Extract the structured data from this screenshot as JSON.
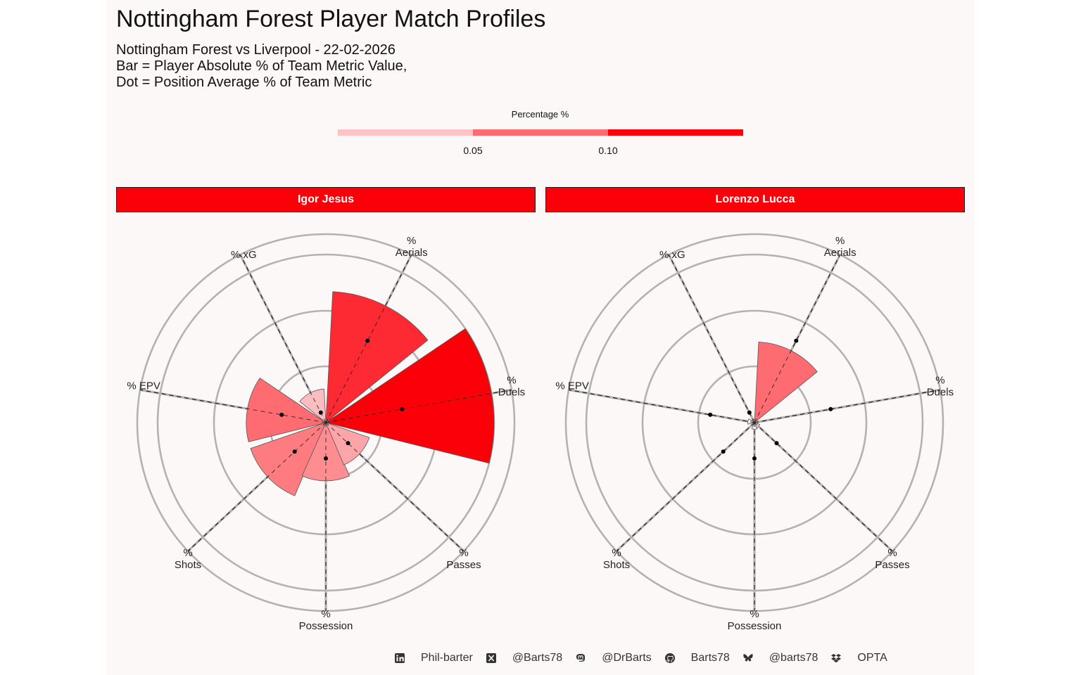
{
  "title": "Nottingham Forest Player Match Profiles",
  "subtitle_lines": [
    "Nottingham Forest vs Liverpool - 22-02-2026",
    "Bar = Player Absolute % of Team Metric Value,",
    "Dot = Position Average % of Team Metric"
  ],
  "footer": {
    "linkedin": "Phil-barter",
    "x": "@Barts78",
    "mastodon": "@DrBarts",
    "github": "Barts78",
    "bluesky": "@barts78",
    "source": "OPTA"
  },
  "colors": {
    "legend_low": "#fdc3c5",
    "legend_mid": "#fe6a6f",
    "legend_high": "#fc000a",
    "grid": "#b3b1b1",
    "bar_outline": "#555555"
  },
  "chart_data": {
    "type": "polar-bar",
    "legend": {
      "title": "Percentage %",
      "ticks": [
        "0.05",
        "0.10"
      ],
      "breaks": [
        0.05,
        0.1
      ],
      "placement": "top"
    },
    "axes": [
      {
        "top": "%",
        "bottom": "Duels",
        "angle_deg": 80
      },
      {
        "top": "%",
        "bottom": "Aerials",
        "angle_deg": 27
      },
      {
        "top": "",
        "bottom": "% xG",
        "angle_deg": -27
      },
      {
        "top": "",
        "bottom": "% EPV",
        "angle_deg": -80
      },
      {
        "top": "%",
        "bottom": "Shots",
        "angle_deg": -133
      },
      {
        "top": "%",
        "bottom": "Possession",
        "angle_deg": 180
      },
      {
        "top": "%",
        "bottom": "Passes",
        "angle_deg": 133
      }
    ],
    "ring_values": [
      0.05,
      0.1,
      0.15
    ],
    "facets": [
      {
        "player": "Igor Jesus",
        "metrics": [
          {
            "metric": "% Duels",
            "value": 0.15,
            "position_avg": 0.069,
            "color": "#fc000a"
          },
          {
            "metric": "% Aerials",
            "value": 0.117,
            "position_avg": 0.082,
            "color": "#fd2a33"
          },
          {
            "metric": "% xG",
            "value": 0.03,
            "position_avg": 0.01,
            "color": "#fdbdc0"
          },
          {
            "metric": "% EPV",
            "value": 0.071,
            "position_avg": 0.04,
            "color": "#fe6c71"
          },
          {
            "metric": "% Shots",
            "value": 0.071,
            "position_avg": 0.038,
            "color": "#fe7b80"
          },
          {
            "metric": "% Possession",
            "value": 0.052,
            "position_avg": 0.032,
            "color": "#fe8d91"
          },
          {
            "metric": "% Passes",
            "value": 0.041,
            "position_avg": 0.027,
            "color": "#fda5a8"
          }
        ]
      },
      {
        "player": "Lorenzo Lucca",
        "metrics": [
          {
            "metric": "% Duels",
            "value": 0.003,
            "position_avg": 0.069,
            "color": "#fde3e4"
          },
          {
            "metric": "% Aerials",
            "value": 0.072,
            "position_avg": 0.082,
            "color": "#fe6c71"
          },
          {
            "metric": "% xG",
            "value": 0.003,
            "position_avg": 0.01,
            "color": "#fde3e4"
          },
          {
            "metric": "% EPV",
            "value": 0.006,
            "position_avg": 0.04,
            "color": "#fde3e4"
          },
          {
            "metric": "% Shots",
            "value": 0.002,
            "position_avg": 0.038,
            "color": "#fde3e4"
          },
          {
            "metric": "% Possession",
            "value": 0.006,
            "position_avg": 0.032,
            "color": "#fde3e4"
          },
          {
            "metric": "% Passes",
            "value": 0.005,
            "position_avg": 0.027,
            "color": "#fde3e4"
          }
        ]
      }
    ]
  }
}
